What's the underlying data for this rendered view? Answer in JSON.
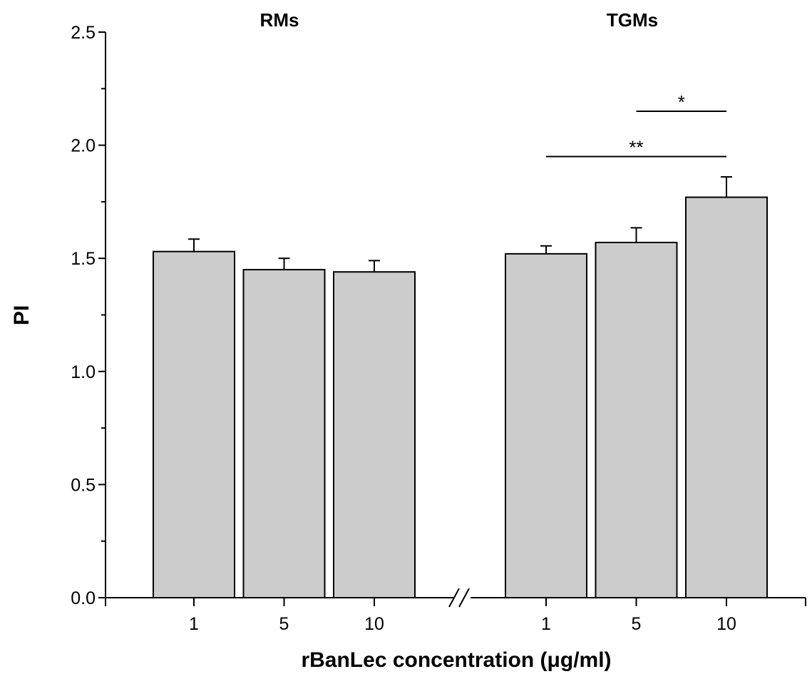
{
  "chart_data": {
    "type": "bar",
    "xlabel": "rBanLec concentration (μg/ml)",
    "ylabel": "PI",
    "ylim": [
      0,
      2.5
    ],
    "yticks": [
      "0.0",
      "0.5",
      "1.0",
      "1.5",
      "2.0",
      "2.5"
    ],
    "grid": false,
    "bar_color": "#cccccc",
    "axis_break": true,
    "groups": [
      {
        "title": "RMs",
        "categories": [
          "1",
          "5",
          "10"
        ],
        "values": [
          1.53,
          1.45,
          1.44
        ],
        "errors": [
          0.055,
          0.05,
          0.05
        ]
      },
      {
        "title": "TGMs",
        "categories": [
          "1",
          "5",
          "10"
        ],
        "values": [
          1.52,
          1.57,
          1.77
        ],
        "errors": [
          0.035,
          0.065,
          0.09
        ]
      }
    ],
    "annotations": [
      {
        "label": "*",
        "group": 1,
        "from": 1,
        "to": 2,
        "y": 2.15
      },
      {
        "label": "**",
        "group": 1,
        "from": 0,
        "to": 2,
        "y": 1.95
      }
    ]
  }
}
